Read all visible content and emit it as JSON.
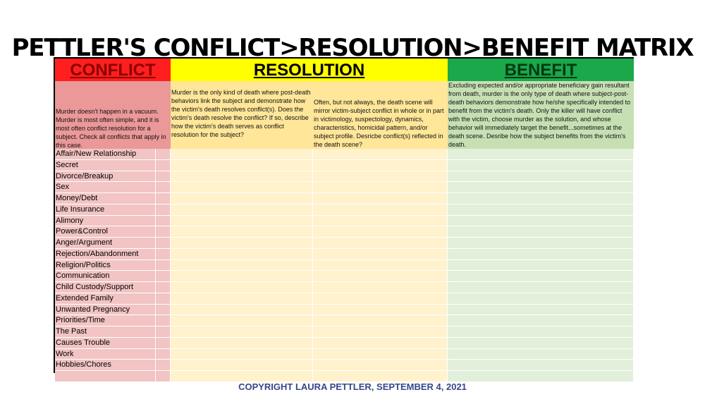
{
  "title": "PETTLER'S CONFLICT>RESOLUTION>BENEFIT MATRIX",
  "headers": {
    "conflict": "CONFLICT",
    "resolution": "RESOLUTION",
    "benefit": "BENEFIT"
  },
  "descriptions": {
    "conflict": "Murder doesn't happen in a vacuum. Murder is most often simple, and it is most often conflict resolution for a subject. Check all conflicts that apply in this case.",
    "resolution_1": "Murder is the only kind of death where post-death behaviors link the subject and demonstrate how the victim's death resolves conflict(s). Does the victim's death resolve the conflict? If so, describe how the victim's death serves as conflict resolution for the subject?",
    "resolution_2": "Often, but not always, the death scene will mirror victim-subject conflict in whole or in part in victimology, suspectology, dynamics, characteristics, homicidal pattern, and/or subject profile. Desricbe conflict(s) reflected in the death scene?",
    "benefit": "Excluding expected and/or appropriate beneficiary gain resultant from death, murder is the only type of death where subject-post-death behaviors demonstrate how he/she specifically intended to benefit from the victim's death. Only the killer will have conflict with the victim, choose murder as the solution, and whose behavior will immediately target the benefit...sometimes at the death scene. Desribe how the subject benefits from the victim's death."
  },
  "conflicts": [
    "Affair/New Relationship",
    "Secret",
    "Divorce/Breakup",
    "Sex",
    "Money/Debt",
    "Life Insurance",
    "Alimony",
    "Power&Control",
    "Anger/Argument",
    "Rejection/Abandonment",
    "Religion/Politics",
    "Communication",
    "Child Custody/Support",
    "Extended Family",
    "Unwanted Pregnancy",
    "Priorities/Time",
    "The Past",
    "Causes Trouble",
    "Work",
    "Hobbies/Chores",
    ""
  ],
  "footer": "COPYRIGHT LAURA PETTLER, SEPTEMBER 4, 2021",
  "colors": {
    "conflict_header": "#ff1f1f",
    "resolution_header": "#ffff00",
    "benefit_header": "#1aa84a",
    "footer_text": "#35478c"
  }
}
